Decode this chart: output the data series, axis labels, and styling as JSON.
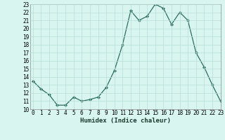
{
  "x": [
    0,
    1,
    2,
    3,
    4,
    5,
    6,
    7,
    8,
    9,
    10,
    11,
    12,
    13,
    14,
    15,
    16,
    17,
    18,
    19,
    20,
    21,
    22,
    23
  ],
  "y": [
    13.5,
    12.5,
    11.8,
    10.5,
    10.5,
    11.5,
    11.0,
    11.2,
    11.5,
    12.7,
    14.8,
    18.0,
    22.2,
    21.0,
    21.5,
    23.0,
    22.5,
    20.5,
    22.0,
    21.0,
    17.0,
    15.2,
    13.0,
    11.0
  ],
  "line_color": "#2d6e5e",
  "marker": "D",
  "marker_size": 2.2,
  "bg_color": "#d8f5f0",
  "grid_color": "#b8ddd8",
  "xlabel": "Humidex (Indice chaleur)",
  "ylim": [
    10,
    23
  ],
  "xlim": [
    -0.3,
    23
  ],
  "yticks": [
    10,
    11,
    12,
    13,
    14,
    15,
    16,
    17,
    18,
    19,
    20,
    21,
    22,
    23
  ],
  "xticks": [
    0,
    1,
    2,
    3,
    4,
    5,
    6,
    7,
    8,
    9,
    10,
    11,
    12,
    13,
    14,
    15,
    16,
    17,
    18,
    19,
    20,
    21,
    22,
    23
  ],
  "xlabel_fontsize": 6.5,
  "tick_fontsize": 5.5
}
